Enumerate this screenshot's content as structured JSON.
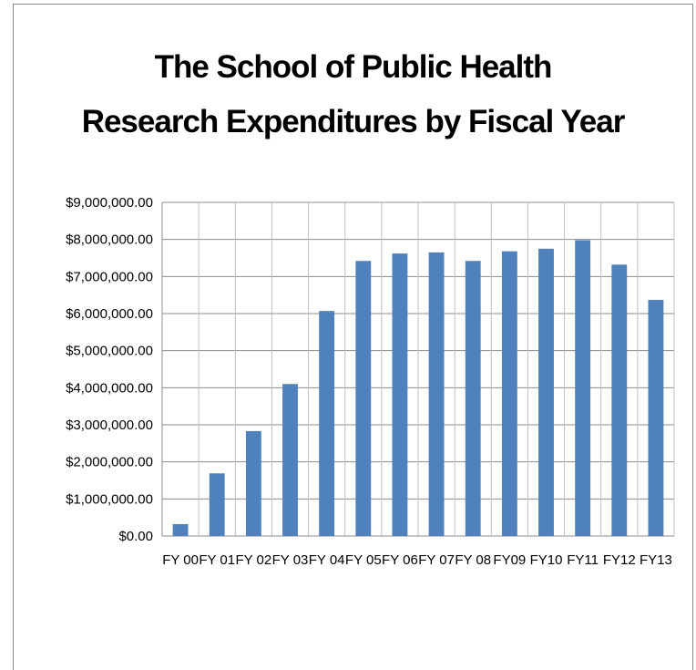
{
  "chart_data": {
    "type": "bar",
    "title_lines": [
      "The School of Public Health",
      "Research Expenditures by Fiscal Year"
    ],
    "categories": [
      "FY 00",
      "FY 01",
      "FY 02",
      "FY 03",
      "FY 04",
      "FY 05",
      "FY 06",
      "FY 07",
      "FY 08",
      "FY09",
      "FY10",
      "FY11",
      "FY12",
      "FY13"
    ],
    "values": [
      320000,
      1690000,
      2830000,
      4100000,
      6070000,
      7420000,
      7620000,
      7650000,
      7420000,
      7680000,
      7750000,
      7980000,
      7320000,
      6370000
    ],
    "y_ticks": [
      "$0.00",
      "$1,000,000.00",
      "$2,000,000.00",
      "$3,000,000.00",
      "$4,000,000.00",
      "$5,000,000.00",
      "$6,000,000.00",
      "$7,000,000.00",
      "$8,000,000.00",
      "$9,000,000.00"
    ],
    "ylim": [
      0,
      9000000
    ],
    "grid": true,
    "bar_color": "#4f81bd"
  }
}
